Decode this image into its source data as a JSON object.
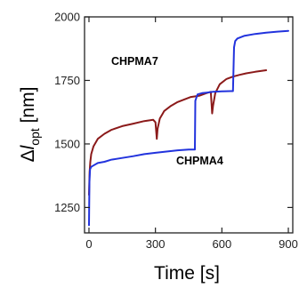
{
  "chart_data": {
    "type": "line",
    "xlabel": "Time [s]",
    "ylabel_parts": {
      "delta": "Δ",
      "italic": "l",
      "sub": "opt",
      "unit": " [nm]"
    },
    "xlim": [
      -20,
      920
    ],
    "ylim": [
      1150,
      2000
    ],
    "x_ticks": [
      0,
      300,
      600,
      900
    ],
    "y_ticks": [
      1250,
      1500,
      1750,
      2000
    ],
    "grid": false,
    "series": [
      {
        "name": "CHPMA7",
        "color": "#8b1a1a",
        "x": [
          0,
          3,
          6,
          10,
          20,
          40,
          70,
          100,
          150,
          200,
          250,
          290,
          300,
          306,
          310,
          320,
          340,
          370,
          400,
          430,
          460,
          500,
          530,
          550,
          556,
          560,
          570,
          590,
          620,
          650,
          680,
          710,
          750,
          800
        ],
        "y": [
          1300,
          1390,
          1430,
          1460,
          1490,
          1520,
          1540,
          1555,
          1570,
          1580,
          1590,
          1595,
          1585,
          1520,
          1560,
          1600,
          1630,
          1650,
          1665,
          1675,
          1685,
          1690,
          1700,
          1705,
          1620,
          1650,
          1700,
          1735,
          1755,
          1765,
          1772,
          1778,
          1784,
          1790
        ]
      },
      {
        "name": "CHPMA4",
        "color": "#2233dd",
        "x": [
          0,
          2,
          5,
          10,
          20,
          40,
          70,
          100,
          150,
          200,
          250,
          300,
          350,
          400,
          450,
          470,
          478,
          480,
          490,
          510,
          530,
          560,
          600,
          640,
          650,
          655,
          660,
          670,
          700,
          750,
          800,
          850,
          900
        ],
        "y": [
          1180,
          1350,
          1400,
          1410,
          1415,
          1425,
          1430,
          1438,
          1445,
          1452,
          1460,
          1465,
          1470,
          1475,
          1478,
          1478,
          1478,
          1670,
          1695,
          1700,
          1702,
          1705,
          1707,
          1708,
          1708,
          1880,
          1905,
          1915,
          1925,
          1933,
          1938,
          1942,
          1945
        ]
      }
    ]
  }
}
